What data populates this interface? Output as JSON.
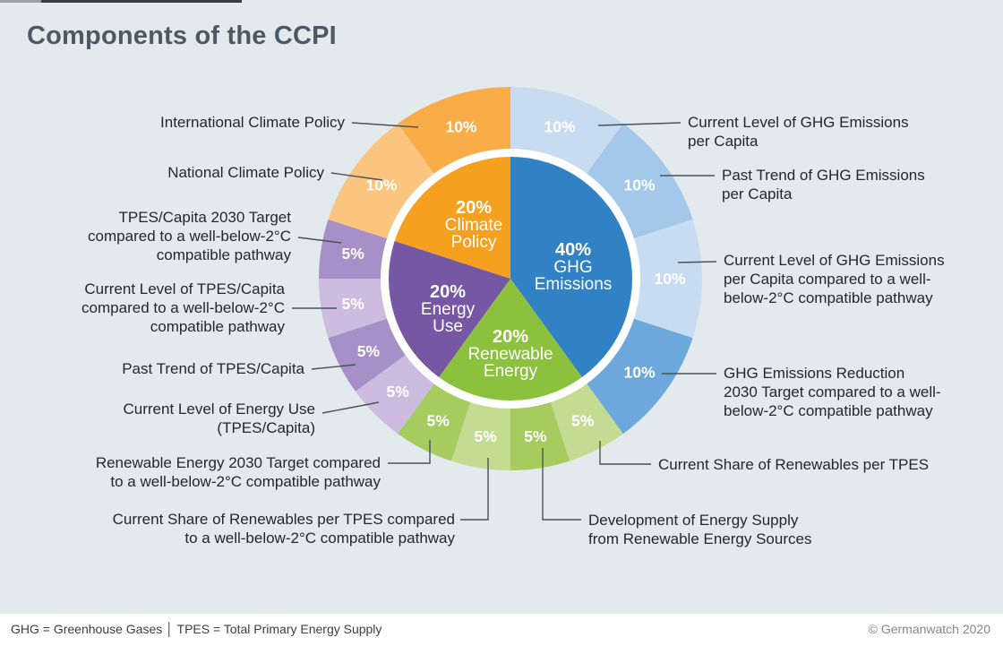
{
  "page": {
    "title": "Components of the CCPI",
    "footer": {
      "left": "GHG = Greenhouse Gases │ TPES = Total Primary Energy Supply",
      "right": "© Germanwatch 2020"
    },
    "background_color": "#e3eaed"
  },
  "chart_data": {
    "type": "pie",
    "subtype": "two-level donut (inner categories, outer indicators)",
    "title": "Components of the CCPI",
    "legend_position": "callout labels around chart",
    "grid": false,
    "inner_ring": [
      {
        "label": "GHG Emissions",
        "value": 40,
        "pct_label": "40%",
        "label_lines": [
          "GHG",
          "Emissions"
        ],
        "color": "#3182c4"
      },
      {
        "label": "Renewable Energy",
        "value": 20,
        "pct_label": "20%",
        "label_lines": [
          "Renewable",
          "Energy"
        ],
        "color": "#8bc13d"
      },
      {
        "label": "Energy Use",
        "value": 20,
        "pct_label": "20%",
        "label_lines": [
          "Energy",
          "Use"
        ],
        "color": "#7557a3"
      },
      {
        "label": "Climate Policy",
        "value": 20,
        "pct_label": "20%",
        "label_lines": [
          "Climate",
          "Policy"
        ],
        "color": "#f5a01f"
      }
    ],
    "outer_ring": [
      {
        "parent": "GHG Emissions",
        "value": 10,
        "pct_label": "10%",
        "color": "#c8dcf1",
        "label": "Current Level of GHG Emissions per Capita",
        "callout_lines": [
          "Current Level of GHG Emissions",
          "per Capita"
        ]
      },
      {
        "parent": "GHG Emissions",
        "value": 10,
        "pct_label": "10%",
        "color": "#a3c8e9",
        "label": "Past Trend of GHG Emissions per Capita",
        "callout_lines": [
          "Past Trend of GHG Emissions",
          "per Capita"
        ]
      },
      {
        "parent": "GHG Emissions",
        "value": 10,
        "pct_label": "10%",
        "color": "#c8dcf1",
        "label": "Current Level of GHG Emissions per Capita compared to a well-below-2°C compatible pathway",
        "callout_lines": [
          "Current Level of GHG Emissions",
          "per Capita compared to a well-",
          "below-2°C compatible pathway"
        ]
      },
      {
        "parent": "GHG Emissions",
        "value": 10,
        "pct_label": "10%",
        "color": "#6ca8db",
        "label": "GHG Emissions Reduction 2030 Target compared to a well-below-2°C compatible pathway",
        "callout_lines": [
          "GHG Emissions Reduction",
          "2030 Target compared to a well-",
          "below-2°C compatible pathway"
        ]
      },
      {
        "parent": "Renewable Energy",
        "value": 5,
        "pct_label": "5%",
        "color": "#c3dc92",
        "label": "Current Share of Renewables per TPES",
        "callout_lines": [
          "Current Share of Renewables per TPES"
        ]
      },
      {
        "parent": "Renewable Energy",
        "value": 5,
        "pct_label": "5%",
        "color": "#a6cb5e",
        "label": "Development of Energy Supply from Renewable Energy Sources",
        "callout_lines": [
          "Development of Energy Supply",
          "from Renewable Energy Sources"
        ]
      },
      {
        "parent": "Renewable Energy",
        "value": 5,
        "pct_label": "5%",
        "color": "#c3dc92",
        "label": "Current Share of Renewables per TPES compared to a well-below-2°C compatible pathway",
        "callout_lines": [
          "Current Share of Renewables per TPES compared",
          "to a well-below-2°C compatible pathway"
        ]
      },
      {
        "parent": "Renewable Energy",
        "value": 5,
        "pct_label": "5%",
        "color": "#a6cb5e",
        "label": "Renewable Energy 2030 Target compared to a well-below-2°C compatible pathway",
        "callout_lines": [
          "Renewable Energy 2030 Target compared",
          "to a well-below-2°C compatible pathway"
        ]
      },
      {
        "parent": "Energy Use",
        "value": 5,
        "pct_label": "5%",
        "color": "#cdbce0",
        "label": "Current Level of Energy Use (TPES/Capita)",
        "callout_lines": [
          "Current Level of Energy Use",
          "(TPES/Capita)"
        ]
      },
      {
        "parent": "Energy Use",
        "value": 5,
        "pct_label": "5%",
        "color": "#a78fc7",
        "label": "Past Trend of TPES/Capita",
        "callout_lines": [
          "Past Trend of TPES/Capita"
        ]
      },
      {
        "parent": "Energy Use",
        "value": 5,
        "pct_label": "5%",
        "color": "#cdbce0",
        "label": "Current Level of TPES/Capita compared to a well-below-2°C compatible pathway",
        "callout_lines": [
          "Current Level of TPES/Capita",
          "compared to a well-below-2°C",
          "compatible pathway"
        ]
      },
      {
        "parent": "Energy Use",
        "value": 5,
        "pct_label": "5%",
        "color": "#a78fc7",
        "label": "TPES/Capita 2030 Target compared to a well-below-2°C compatible pathway",
        "callout_lines": [
          "TPES/Capita 2030 Target",
          "compared to a well-below-2°C",
          "compatible pathway"
        ]
      },
      {
        "parent": "Climate Policy",
        "value": 10,
        "pct_label": "10%",
        "color": "#fbc57f",
        "label": "National Climate Policy",
        "callout_lines": [
          "National Climate Policy"
        ]
      },
      {
        "parent": "Climate Policy",
        "value": 10,
        "pct_label": "10%",
        "color": "#f8ad49",
        "label": "International Climate Policy",
        "callout_lines": [
          "International Climate Policy"
        ]
      }
    ]
  }
}
